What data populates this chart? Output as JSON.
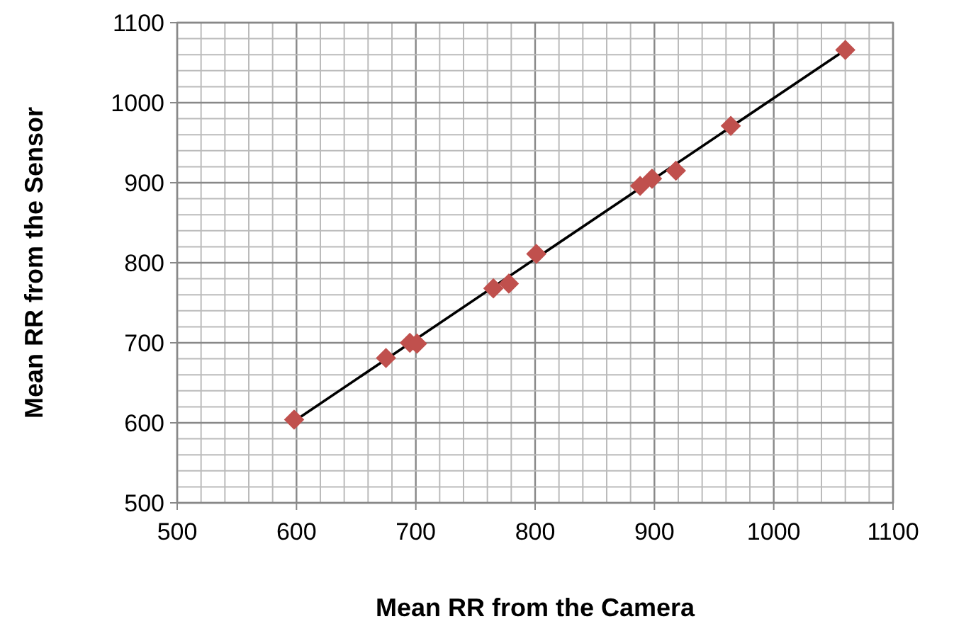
{
  "chart_data": {
    "type": "scatter",
    "xlabel": "Mean RR from the Camera",
    "ylabel": "Mean RR from the Sensor",
    "series": [
      {
        "color": "#c0504d",
        "marker": "diamond",
        "x": [
          598,
          675,
          695,
          701,
          765,
          778,
          801,
          888,
          898,
          918,
          964,
          1060
        ],
        "values": [
          604,
          681,
          700,
          699,
          768,
          774,
          811,
          896,
          905,
          915,
          971,
          1066
        ]
      },
      {
        "type": "line",
        "color": "#000000",
        "marker": "none",
        "x": [
          598,
          1060
        ],
        "values": [
          602,
          1066
        ]
      }
    ],
    "xlim": [
      500,
      1100
    ],
    "ylim": [
      500,
      1100
    ],
    "xticks": [
      500,
      {
        "value": 520,
        "label": null
      },
      {
        "value": 540,
        "label": null
      },
      {
        "value": 560,
        "label": null
      },
      {
        "value": 580,
        "label": null
      },
      600,
      {
        "value": 620,
        "label": null
      },
      {
        "value": 640,
        "label": null
      },
      {
        "value": 660,
        "label": null
      },
      {
        "value": 680,
        "label": null
      },
      700,
      {
        "value": 720,
        "label": null
      },
      {
        "value": 740,
        "label": null
      },
      {
        "value": 760,
        "label": null
      },
      {
        "value": 780,
        "label": null
      },
      800,
      {
        "value": 820,
        "label": null
      },
      {
        "value": 840,
        "label": null
      },
      {
        "value": 860,
        "label": null
      },
      {
        "value": 880,
        "label": null
      },
      900,
      {
        "value": 920,
        "label": null
      },
      {
        "value": 940,
        "label": null
      },
      {
        "value": 960,
        "label": null
      },
      {
        "value": 980,
        "label": null
      },
      1000,
      {
        "value": 1020,
        "label": null
      },
      {
        "value": 1040,
        "label": null
      },
      {
        "value": 1060,
        "label": null
      },
      {
        "value": 1080,
        "label": null
      },
      1100
    ],
    "yticks": [
      500,
      {
        "value": 520,
        "label": null
      },
      {
        "value": 540,
        "label": null
      },
      {
        "value": 560,
        "label": null
      },
      {
        "value": 580,
        "label": null
      },
      600,
      {
        "value": 620,
        "label": null
      },
      {
        "value": 640,
        "label": null
      },
      {
        "value": 660,
        "label": null
      },
      {
        "value": 680,
        "label": null
      },
      700,
      {
        "value": 720,
        "label": null
      },
      {
        "value": 740,
        "label": null
      },
      {
        "value": 760,
        "label": null
      },
      {
        "value": 780,
        "label": null
      },
      800,
      {
        "value": 820,
        "label": null
      },
      {
        "value": 840,
        "label": null
      },
      {
        "value": 860,
        "label": null
      },
      {
        "value": 880,
        "label": null
      },
      900,
      {
        "value": 920,
        "label": null
      },
      {
        "value": 940,
        "label": null
      },
      {
        "value": 960,
        "label": null
      },
      {
        "value": 980,
        "label": null
      },
      1000,
      {
        "value": 1020,
        "label": null
      },
      {
        "value": 1040,
        "label": null
      },
      {
        "value": 1060,
        "label": null
      },
      {
        "value": 1080,
        "label": null
      },
      1100
    ],
    "grid": true
  }
}
